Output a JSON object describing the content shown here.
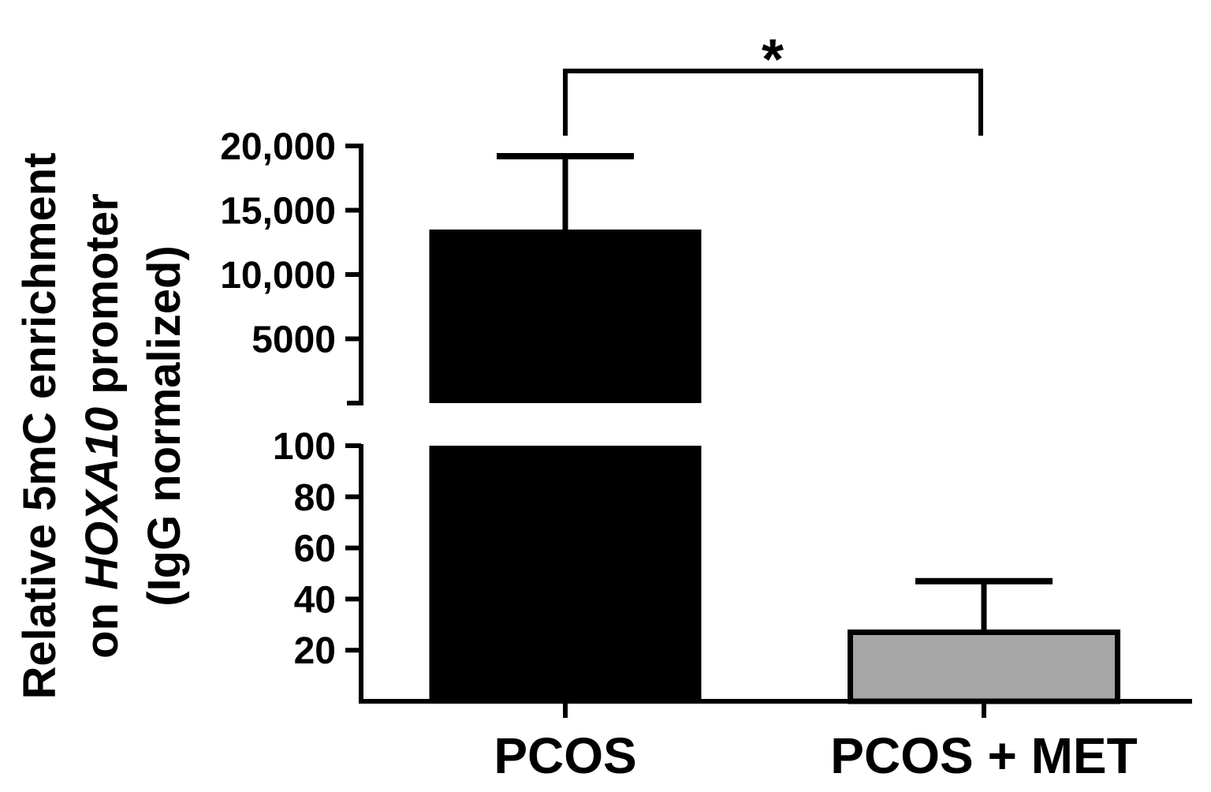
{
  "chart_data": {
    "type": "bar",
    "categories": [
      "PCOS",
      "PCOS + MET"
    ],
    "series": [
      {
        "values": [
          13500,
          27
        ],
        "errors": [
          5700,
          20
        ],
        "colors": [
          "#000000",
          "#a6a6a6"
        ]
      }
    ],
    "axis_break": true,
    "y_upper_segment": {
      "ylim": [
        0,
        20000
      ],
      "ticks": [
        5000,
        10000,
        15000,
        20000
      ],
      "tick_labels": [
        "5000",
        "10,000",
        "15,000",
        "20,000"
      ]
    },
    "y_lower_segment": {
      "ylim": [
        0,
        100
      ],
      "ticks": [
        20,
        40,
        60,
        80,
        100
      ],
      "tick_labels": [
        "20",
        "40",
        "60",
        "80",
        "100"
      ]
    },
    "ylabel_lines": [
      "Relative 5mC enrichment",
      "on ",
      "HOXA10",
      " promoter",
      "(IgG normalized)"
    ],
    "xlabel": "",
    "title": "",
    "significance": {
      "between": [
        "PCOS",
        "PCOS + MET"
      ],
      "label": "*"
    },
    "grid": false,
    "legend": "none"
  }
}
